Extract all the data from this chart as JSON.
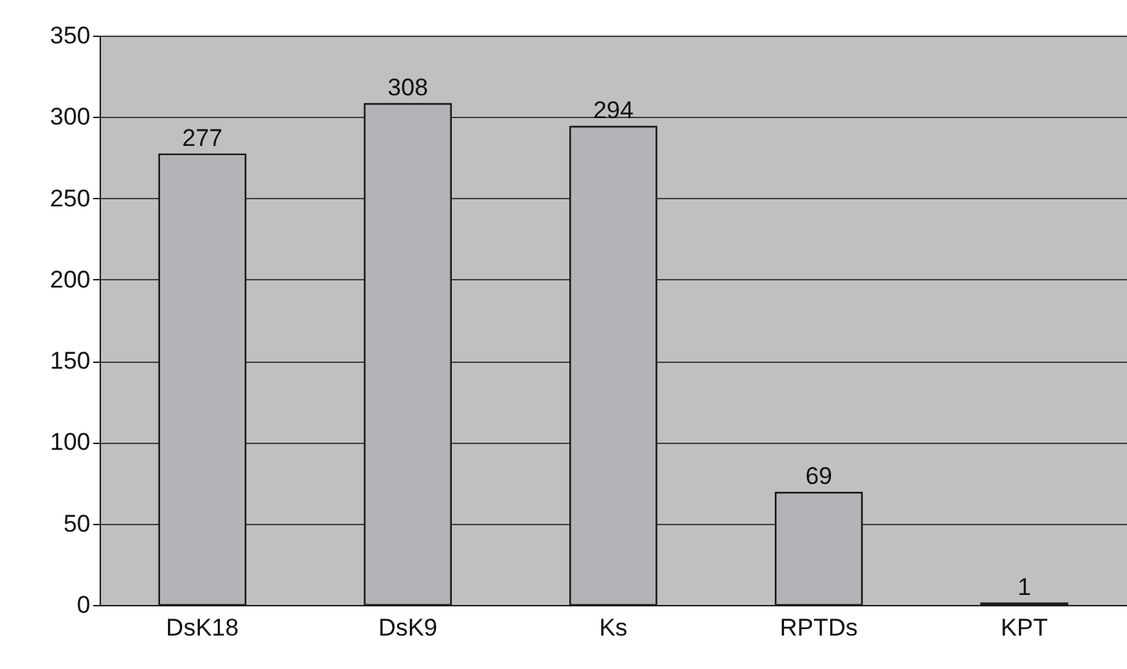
{
  "chart_data": {
    "type": "bar",
    "categories": [
      "DsK18",
      "DsK9",
      "Ks",
      "RPTDs",
      "KPT"
    ],
    "values": [
      277,
      308,
      294,
      69,
      1
    ],
    "color": "#b4b4b8",
    "ylim": [
      0,
      350
    ],
    "yticks": [
      0,
      50,
      100,
      150,
      200,
      250,
      300,
      350
    ],
    "grid": "y",
    "data_labels": true
  }
}
